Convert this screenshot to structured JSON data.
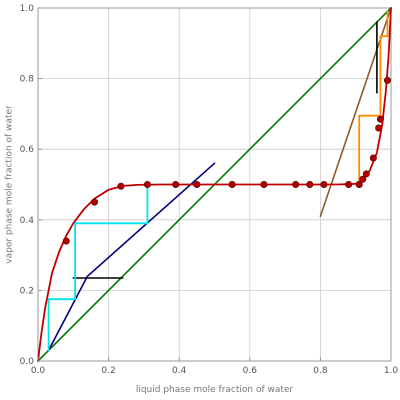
{
  "chart_data": {
    "type": "line",
    "title": "",
    "xlabel": "liquid phase mole fraction of water",
    "ylabel": "vapor phase mole fraction of water",
    "xlim": [
      0,
      1
    ],
    "ylim": [
      0,
      1
    ],
    "x_ticks": [
      "0.0",
      "0.2",
      "0.4",
      "0.6",
      "0.8",
      "1.0"
    ],
    "y_ticks": [
      "0.0",
      "0.2",
      "0.4",
      "0.6",
      "0.8",
      "1.0"
    ],
    "grid": true,
    "legend": "none",
    "series": [
      {
        "kind": "curve",
        "color": "#c00000",
        "x": [
          0,
          0.01,
          0.02,
          0.04,
          0.06,
          0.08,
          0.1,
          0.13,
          0.16,
          0.2,
          0.24,
          0.28,
          0.35,
          0.5,
          0.7,
          0.85,
          0.9,
          0.92,
          0.94,
          0.96,
          0.975,
          0.985,
          0.993,
          1.0
        ],
        "y": [
          0,
          0.08,
          0.15,
          0.25,
          0.31,
          0.355,
          0.39,
          0.43,
          0.46,
          0.485,
          0.496,
          0.499,
          0.5,
          0.5,
          0.5,
          0.5,
          0.502,
          0.515,
          0.54,
          0.59,
          0.67,
          0.76,
          0.86,
          1.0
        ]
      },
      {
        "kind": "points",
        "color": "#b00000",
        "x": [
          0.08,
          0.16,
          0.235,
          0.31,
          0.39,
          0.45,
          0.55,
          0.64,
          0.73,
          0.77,
          0.81,
          0.88,
          0.91,
          0.92,
          0.93,
          0.95,
          0.965,
          0.97,
          0.99
        ],
        "y": [
          0.34,
          0.45,
          0.495,
          0.5,
          0.5,
          0.5,
          0.5,
          0.5,
          0.5,
          0.5,
          0.5,
          0.5,
          0.5,
          0.515,
          0.53,
          0.575,
          0.66,
          0.685,
          0.795
        ]
      },
      {
        "kind": "line",
        "color": "#007a00",
        "x": [
          0,
          1
        ],
        "y": [
          0,
          1
        ]
      },
      {
        "kind": "line",
        "color": "#00007a",
        "x": [
          0.03,
          0.14,
          0.5
        ],
        "y": [
          0.03,
          0.24,
          0.56
        ]
      },
      {
        "kind": "line",
        "color": "#8b5a2b",
        "x": [
          0.8,
          1.0
        ],
        "y": [
          0.41,
          1.0
        ]
      },
      {
        "kind": "step",
        "color": "#00e5ee",
        "x": [
          0.03,
          0.03,
          0.105,
          0.105,
          0.31,
          0.31
        ],
        "y": [
          0.03,
          0.175,
          0.175,
          0.39,
          0.39,
          0.5
        ]
      },
      {
        "kind": "step",
        "color": "#ff8c00",
        "x": [
          0.91,
          0.91,
          0.97,
          0.97,
          0.99,
          0.99
        ],
        "y": [
          0.5,
          0.695,
          0.695,
          0.92,
          0.92,
          0.99
        ]
      },
      {
        "kind": "line",
        "color": "#000000",
        "x": [
          0.1,
          0.24
        ],
        "y": [
          0.235,
          0.235
        ]
      },
      {
        "kind": "line",
        "color": "#000000",
        "x": [
          0.96,
          0.96
        ],
        "y": [
          0.76,
          0.96
        ]
      }
    ]
  }
}
